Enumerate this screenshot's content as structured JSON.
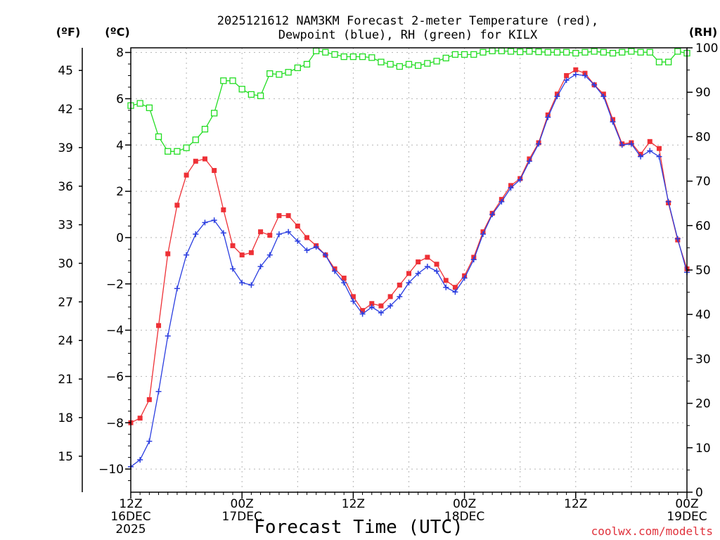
{
  "title_line1": "2025121612 NAM3KM Forecast 2-meter Temperature (red),",
  "title_line2": "Dewpoint (blue), RH (green) for KILX",
  "credit": "coolwx.com/modelts",
  "colors": {
    "temperature": "#ee3036",
    "dewpoint": "#2a3de0",
    "rh": "#22dd22",
    "credit": "#e0313b"
  },
  "chart_data": {
    "type": "line",
    "title": "2025121612 NAM3KM Forecast 2-meter Temperature (red), Dewpoint (blue), RH (green) for KILX",
    "xlabel": "Forecast Time (UTC)",
    "x_ticks": [
      {
        "at": 0,
        "label1": "12Z",
        "label2": "16DEC",
        "label3": "2025"
      },
      {
        "at": 12,
        "label1": "00Z",
        "label2": "17DEC",
        "label3": ""
      },
      {
        "at": 24,
        "label1": "12Z",
        "label2": "",
        "label3": ""
      },
      {
        "at": 36,
        "label1": "00Z",
        "label2": "18DEC",
        "label3": ""
      },
      {
        "at": 48,
        "label1": "12Z",
        "label2": "",
        "label3": ""
      },
      {
        "at": 60,
        "label1": "00Z",
        "label2": "19DEC",
        "label3": ""
      }
    ],
    "x_unit": "forecast hour",
    "xlim": [
      0,
      60
    ],
    "left_unit_f": "(ºF)",
    "left_unit_c": "(ºC)",
    "right_unit": "(RH)",
    "ylim_c": [
      -11,
      8.2
    ],
    "ylim_rh": [
      0,
      100
    ],
    "yticks_c": [
      "8",
      "6",
      "4",
      "2",
      "0",
      "−2",
      "−4",
      "−6",
      "−8",
      "−10"
    ],
    "yticks_c_values": [
      8,
      6,
      4,
      2,
      0,
      -2,
      -4,
      -6,
      -8,
      -10
    ],
    "yticks_f": [
      "45",
      "42",
      "39",
      "36",
      "33",
      "30",
      "27",
      "24",
      "21",
      "18",
      "15"
    ],
    "yticks_f_values": [
      45,
      42,
      39,
      36,
      33,
      30,
      27,
      24,
      21,
      18,
      15
    ],
    "yticks_rh": [
      "100",
      "90",
      "80",
      "70",
      "60",
      "50",
      "40",
      "30",
      "20",
      "10",
      "0"
    ],
    "yticks_rh_values": [
      100,
      90,
      80,
      70,
      60,
      50,
      40,
      30,
      20,
      10,
      0
    ],
    "grid": true,
    "series": [
      {
        "name": "Temperature",
        "axis": "celsius",
        "marker": "filled-square",
        "points": [
          [
            0,
            -8
          ],
          [
            1,
            -7.8
          ],
          [
            2,
            -7
          ],
          [
            3,
            -3.8
          ],
          [
            4,
            -0.7
          ],
          [
            5,
            1.4
          ],
          [
            6,
            2.7
          ],
          [
            7,
            3.3
          ],
          [
            8,
            3.4
          ],
          [
            9,
            2.9
          ],
          [
            10,
            1.2
          ],
          [
            11,
            -0.35
          ],
          [
            12,
            -0.75
          ],
          [
            13,
            -0.65
          ],
          [
            14,
            0.25
          ],
          [
            15,
            0.1
          ],
          [
            16,
            0.95
          ],
          [
            17,
            0.95
          ],
          [
            18,
            0.5
          ],
          [
            19,
            0
          ],
          [
            20,
            -0.35
          ],
          [
            21,
            -0.75
          ],
          [
            22,
            -1.35
          ],
          [
            23,
            -1.75
          ],
          [
            24,
            -2.55
          ],
          [
            25,
            -3.15
          ],
          [
            26,
            -2.85
          ],
          [
            27,
            -2.95
          ],
          [
            28,
            -2.55
          ],
          [
            29,
            -2.05
          ],
          [
            30,
            -1.55
          ],
          [
            31,
            -1.05
          ],
          [
            32,
            -0.85
          ],
          [
            33,
            -1.15
          ],
          [
            34,
            -1.85
          ],
          [
            35,
            -2.15
          ],
          [
            36,
            -1.65
          ],
          [
            37,
            -0.85
          ],
          [
            38,
            0.25
          ],
          [
            39,
            1.05
          ],
          [
            40,
            1.65
          ],
          [
            41,
            2.25
          ],
          [
            42,
            2.55
          ],
          [
            43,
            3.4
          ],
          [
            44,
            4.1
          ],
          [
            45,
            5.3
          ],
          [
            46,
            6.2
          ],
          [
            47,
            7.0
          ],
          [
            48,
            7.25
          ],
          [
            49,
            7.1
          ],
          [
            50,
            6.6
          ],
          [
            51,
            6.2
          ],
          [
            52,
            5.1
          ],
          [
            53,
            4.05
          ],
          [
            54,
            4.1
          ],
          [
            55,
            3.6
          ],
          [
            56,
            4.15
          ],
          [
            57,
            3.85
          ],
          [
            58,
            1.5
          ],
          [
            59,
            -0.1
          ],
          [
            60,
            -1.35
          ]
        ]
      },
      {
        "name": "Dewpoint",
        "axis": "celsius",
        "marker": "plus",
        "points": [
          [
            0,
            -9.9
          ],
          [
            1,
            -9.6
          ],
          [
            2,
            -8.8
          ],
          [
            3,
            -6.65
          ],
          [
            4,
            -4.25
          ],
          [
            5,
            -2.2
          ],
          [
            6,
            -0.75
          ],
          [
            7,
            0.15
          ],
          [
            8,
            0.65
          ],
          [
            9,
            0.75
          ],
          [
            10,
            0.2
          ],
          [
            11,
            -1.35
          ],
          [
            12,
            -1.95
          ],
          [
            13,
            -2.05
          ],
          [
            14,
            -1.25
          ],
          [
            15,
            -0.75
          ],
          [
            16,
            0.15
          ],
          [
            17,
            0.25
          ],
          [
            18,
            -0.15
          ],
          [
            19,
            -0.55
          ],
          [
            20,
            -0.4
          ],
          [
            21,
            -0.75
          ],
          [
            22,
            -1.45
          ],
          [
            23,
            -1.95
          ],
          [
            24,
            -2.75
          ],
          [
            25,
            -3.3
          ],
          [
            26,
            -3.0
          ],
          [
            27,
            -3.25
          ],
          [
            28,
            -2.95
          ],
          [
            29,
            -2.55
          ],
          [
            30,
            -1.95
          ],
          [
            31,
            -1.55
          ],
          [
            32,
            -1.25
          ],
          [
            33,
            -1.45
          ],
          [
            34,
            -2.15
          ],
          [
            35,
            -2.35
          ],
          [
            36,
            -1.75
          ],
          [
            37,
            -0.95
          ],
          [
            38,
            0.15
          ],
          [
            39,
            1.0
          ],
          [
            40,
            1.55
          ],
          [
            41,
            2.15
          ],
          [
            42,
            2.5
          ],
          [
            43,
            3.3
          ],
          [
            44,
            4.05
          ],
          [
            45,
            5.2
          ],
          [
            46,
            6.1
          ],
          [
            47,
            6.8
          ],
          [
            48,
            7.05
          ],
          [
            49,
            7.0
          ],
          [
            50,
            6.6
          ],
          [
            51,
            6.1
          ],
          [
            52,
            5.0
          ],
          [
            53,
            4.0
          ],
          [
            54,
            4.05
          ],
          [
            55,
            3.5
          ],
          [
            56,
            3.75
          ],
          [
            57,
            3.5
          ],
          [
            58,
            1.55
          ],
          [
            59,
            -0.05
          ],
          [
            60,
            -1.5
          ]
        ]
      },
      {
        "name": "RH",
        "axis": "rh",
        "marker": "open-square",
        "points": [
          [
            0,
            87
          ],
          [
            1,
            87.5
          ],
          [
            2,
            86.5
          ],
          [
            3,
            80
          ],
          [
            4,
            76.7
          ],
          [
            5,
            76.7
          ],
          [
            6,
            77.5
          ],
          [
            7,
            79.3
          ],
          [
            8,
            81.7
          ],
          [
            9,
            85.3
          ],
          [
            10,
            92.6
          ],
          [
            11,
            92.6
          ],
          [
            12,
            90.7
          ],
          [
            13,
            89.5
          ],
          [
            14,
            89.2
          ],
          [
            15,
            94.2
          ],
          [
            16,
            94.0
          ],
          [
            17,
            94.5
          ],
          [
            18,
            95.5
          ],
          [
            19,
            96.3
          ],
          [
            20,
            99.3
          ],
          [
            21,
            99.0
          ],
          [
            22,
            98.5
          ],
          [
            23,
            98.0
          ],
          [
            24,
            98.0
          ],
          [
            25,
            98.0
          ],
          [
            26,
            97.8
          ],
          [
            27,
            96.8
          ],
          [
            28,
            96.3
          ],
          [
            29,
            95.8
          ],
          [
            30,
            96.3
          ],
          [
            31,
            96.0
          ],
          [
            32,
            96.5
          ],
          [
            33,
            97.0
          ],
          [
            34,
            97.7
          ],
          [
            35,
            98.5
          ],
          [
            36,
            98.5
          ],
          [
            37,
            98.5
          ],
          [
            38,
            99.0
          ],
          [
            39,
            99.3
          ],
          [
            40,
            99.3
          ],
          [
            41,
            99.2
          ],
          [
            42,
            99.1
          ],
          [
            43,
            99.2
          ],
          [
            44,
            99.1
          ],
          [
            45,
            99.0
          ],
          [
            46,
            99.0
          ],
          [
            47,
            99.0
          ],
          [
            48,
            98.8
          ],
          [
            49,
            99.0
          ],
          [
            50,
            99.2
          ],
          [
            51,
            99.0
          ],
          [
            52,
            98.8
          ],
          [
            53,
            99.0
          ],
          [
            54,
            99.2
          ],
          [
            55,
            99.0
          ],
          [
            56,
            99.0
          ],
          [
            57,
            96.8
          ],
          [
            58,
            96.8
          ],
          [
            59,
            99.2
          ],
          [
            60,
            98.8
          ]
        ]
      }
    ]
  }
}
